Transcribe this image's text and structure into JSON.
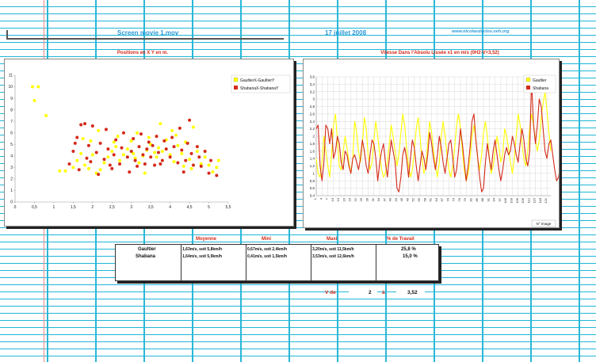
{
  "header": {
    "movie": "Screen movie 1.mov",
    "date": "17 juillet 2008",
    "site": "www.nicolasduclos.ovh.org"
  },
  "chart_data": [
    {
      "type": "scatter",
      "title": "Positions en X Y en m.",
      "xlim": [
        0,
        5.5
      ],
      "ylim": [
        0,
        11
      ],
      "xticks": [
        "0",
        "0,5",
        "1",
        "1,5",
        "2",
        "2,5",
        "3",
        "3,5",
        "4",
        "4,5",
        "5",
        "5,5"
      ],
      "yticks": [
        "0",
        "1",
        "2",
        "3",
        "4",
        "5",
        "6",
        "7",
        "8",
        "9",
        "10",
        "11"
      ],
      "legend": "top-right",
      "grid": false,
      "series": [
        {
          "name": "GaultierX-GaultierY",
          "color": "#ffff00",
          "points": [
            [
              0.45,
              10
            ],
            [
              0.6,
              10
            ],
            [
              0.5,
              8.8
            ],
            [
              0.8,
              7.5
            ],
            [
              1.15,
              2.7
            ],
            [
              1.3,
              2.7
            ],
            [
              1.5,
              3
            ],
            [
              1.6,
              3.6
            ],
            [
              1.7,
              4.2
            ],
            [
              1.75,
              5.5
            ],
            [
              1.8,
              3.2
            ],
            [
              1.9,
              2.9
            ],
            [
              2,
              4.1
            ],
            [
              2.1,
              2.5
            ],
            [
              2.2,
              2.8
            ],
            [
              2.3,
              3.4
            ],
            [
              2.4,
              3.9
            ],
            [
              2.5,
              4.4
            ],
            [
              2.55,
              5.2
            ],
            [
              2.6,
              4.8
            ],
            [
              2.7,
              3.6
            ],
            [
              2.8,
              4.1
            ],
            [
              2.9,
              4.6
            ],
            [
              3,
              5.3
            ],
            [
              3.05,
              4.2
            ],
            [
              3.1,
              3.8
            ],
            [
              3.2,
              3.4
            ],
            [
              3.3,
              4
            ],
            [
              3.35,
              2.5
            ],
            [
              3.4,
              4.5
            ],
            [
              3.5,
              5
            ],
            [
              3.6,
              4.3
            ],
            [
              3.65,
              3.9
            ],
            [
              3.7,
              4.7
            ],
            [
              3.75,
              6.8
            ],
            [
              3.8,
              4.4
            ],
            [
              3.9,
              5.4
            ],
            [
              4,
              4.1
            ],
            [
              4.1,
              3.5
            ],
            [
              4.15,
              5.8
            ],
            [
              4.2,
              4.9
            ],
            [
              4.3,
              4.2
            ],
            [
              4.35,
              3.1
            ],
            [
              4.4,
              5.2
            ],
            [
              4.5,
              3.7
            ],
            [
              4.55,
              2.9
            ],
            [
              4.6,
              6.5
            ],
            [
              4.7,
              4.4
            ],
            [
              4.8,
              3.3
            ],
            [
              4.9,
              3.9
            ],
            [
              5,
              3.2
            ],
            [
              5.1,
              2.6
            ],
            [
              5.2,
              3
            ],
            [
              5.25,
              3.6
            ],
            [
              1.95,
              5.3
            ],
            [
              2.15,
              6.2
            ],
            [
              2.65,
              5.7
            ],
            [
              3.15,
              6
            ],
            [
              3.45,
              5.6
            ],
            [
              4.05,
              6.2
            ]
          ]
        },
        {
          "name": "ShabanaX-ShabanaY",
          "color": "#d42a1a",
          "points": [
            [
              1.4,
              3.3
            ],
            [
              1.5,
              4.4
            ],
            [
              1.6,
              5.6
            ],
            [
              1.65,
              2.8
            ],
            [
              1.7,
              6.7
            ],
            [
              1.8,
              6.8
            ],
            [
              1.85,
              3.8
            ],
            [
              1.9,
              4.9
            ],
            [
              1.95,
              3.5
            ],
            [
              2,
              6.6
            ],
            [
              2.1,
              4.3
            ],
            [
              2.15,
              2.4
            ],
            [
              2.2,
              5.1
            ],
            [
              2.3,
              3.7
            ],
            [
              2.35,
              6.3
            ],
            [
              2.4,
              4.6
            ],
            [
              2.5,
              2.9
            ],
            [
              2.55,
              4.1
            ],
            [
              2.6,
              5.4
            ],
            [
              2.7,
              3.3
            ],
            [
              2.75,
              4.7
            ],
            [
              2.8,
              6
            ],
            [
              2.9,
              3.9
            ],
            [
              2.95,
              2.6
            ],
            [
              3,
              4.4
            ],
            [
              3.05,
              5.5
            ],
            [
              3.1,
              3.6
            ],
            [
              3.2,
              4.8
            ],
            [
              3.25,
              5.9
            ],
            [
              3.3,
              4.1
            ],
            [
              3.35,
              3.3
            ],
            [
              3.4,
              4.6
            ],
            [
              3.45,
              5.2
            ],
            [
              3.5,
              3.9
            ],
            [
              3.55,
              4.9
            ],
            [
              3.6,
              3.2
            ],
            [
              3.65,
              5.7
            ],
            [
              3.7,
              4.3
            ],
            [
              3.8,
              3.6
            ],
            [
              3.85,
              5.3
            ],
            [
              3.9,
              4.6
            ],
            [
              4,
              3.9
            ],
            [
              4.05,
              5.6
            ],
            [
              4.1,
              4.8
            ],
            [
              4.2,
              3.4
            ],
            [
              4.25,
              6.4
            ],
            [
              4.3,
              4.5
            ],
            [
              4.4,
              3.6
            ],
            [
              4.45,
              5.1
            ],
            [
              4.5,
              7.1
            ],
            [
              4.55,
              4.2
            ],
            [
              4.6,
              3.2
            ],
            [
              4.7,
              4.8
            ],
            [
              4.75,
              3.9
            ],
            [
              4.8,
              3.1
            ],
            [
              4.9,
              4.4
            ],
            [
              5,
              2.5
            ],
            [
              5.05,
              3.6
            ],
            [
              5.2,
              2.3
            ],
            [
              1.55,
              5.1
            ],
            [
              2.45,
              3.2
            ],
            [
              3.15,
              3.1
            ],
            [
              3.75,
              3.3
            ],
            [
              4.35,
              2.6
            ]
          ]
        }
      ]
    },
    {
      "type": "line",
      "title": "Vitesse Dans l'Absolu Lissée x1 en m/s (0H2-V=3,52)",
      "xlabel": "N° Image",
      "ylim": [
        0.4,
        3.6
      ],
      "yticks": [
        "0,4",
        "0,6",
        "0,8",
        "1",
        "1,2",
        "1,4",
        "1,6",
        "1,8",
        "2",
        "2,2",
        "2,4",
        "2,6",
        "2,8",
        "3",
        "3,2",
        "3,4",
        "3,6"
      ],
      "xticks": [
        "1",
        "4",
        "7",
        "10",
        "13",
        "16",
        "19",
        "22",
        "25",
        "28",
        "31",
        "34",
        "37",
        "40",
        "43",
        "46",
        "49",
        "52",
        "55",
        "58",
        "61",
        "64",
        "67",
        "70",
        "73",
        "76",
        "79",
        "82",
        "85",
        "88",
        "91",
        "94",
        "97",
        "100",
        "103",
        "106",
        "109",
        "112",
        "115",
        "118",
        "121",
        "124",
        "127",
        "130"
      ],
      "legend": "top-right",
      "grid": true,
      "series": [
        {
          "name": "Gaultier",
          "color": "#ffff00",
          "values": [
            1.4,
            1,
            0.9,
            1.3,
            2,
            1.6,
            1.2,
            0.9,
            1.5,
            2.3,
            2.6,
            1.9,
            1.2,
            1.1,
            1.6,
            2,
            1.7,
            1.3,
            1,
            1.4,
            2.4,
            2.1,
            1.6,
            1.3,
            1.8,
            2.5,
            2.2,
            1.5,
            1.1,
            1.3,
            1.9,
            2.4,
            2,
            1.5,
            1.1,
            0.9,
            1,
            1.3,
            1.8,
            2.3,
            2,
            1.6,
            1.2,
            1.5,
            2.1,
            2.6,
            2.3,
            1.7,
            1.2,
            0.9,
            1.1,
            1.6,
            2.2,
            2.5,
            2,
            1.4,
            1,
            1.2,
            1.8,
            2.4,
            2.1,
            1.6,
            1.2,
            0.9,
            1.3,
            2,
            2.4,
            2,
            1.5,
            1.1,
            0.9,
            1.2,
            1.7,
            2.3,
            2.6,
            2.2,
            1.6,
            1.1,
            0.8,
            1,
            1.4,
            2,
            2.3,
            1.9,
            1.4,
            1.1,
            1.5,
            2.1,
            2.4,
            2,
            1.4,
            1,
            1.2,
            1.6,
            2,
            1.7,
            1.3,
            1.5,
            2.2,
            2,
            1.7,
            1.3,
            1,
            1.4,
            2,
            2.6,
            2.3,
            1.8,
            1.4,
            1.2,
            1.6,
            2.2,
            2.6,
            2.3,
            1.9,
            1.6,
            1.9,
            2.5,
            2.9,
            3.2,
            2.7,
            2.1,
            1.6
          ]
        },
        {
          "name": "Shabana",
          "color": "#d42a1a",
          "values": [
            2.2,
            2.3,
            1.2,
            0.8,
            1.3,
            2.3,
            2.2,
            1.8,
            2.2,
            1.4,
            1.6,
            2,
            1.8,
            1.3,
            1.1,
            1.6,
            1.5,
            1.2,
            1,
            1.4,
            1.5,
            1.3,
            1.1,
            1.4,
            1.9,
            1.6,
            1.2,
            1,
            1.5,
            1.9,
            1.8,
            1.4,
            0.8,
            1.3,
            1.6,
            1.8,
            1.3,
            0.9,
            1.4,
            1.9,
            1.6,
            1.3,
            0.6,
            0.5,
            0.9,
            1.5,
            1.7,
            1.4,
            0.9,
            1.4,
            1.9,
            1.7,
            1.2,
            0.8,
            1.2,
            1.6,
            1.4,
            1.1,
            1.5,
            2.1,
            1.8,
            1.4,
            1.1,
            1.5,
            2,
            1.7,
            1.3,
            1,
            1.4,
            1.8,
            1.9,
            1.4,
            0.9,
            1.1,
            1.6,
            2.2,
            1.8,
            1.3,
            0.8,
            1.2,
            1.7,
            2.4,
            2.6,
            1.9,
            1.4,
            0.9,
            0.5,
            0.6,
            1.3,
            1.8,
            1.4,
            1.1,
            1.6,
            1.9,
            1.5,
            1.1,
            0.8,
            1.1,
            1.5,
            1.7,
            1.5,
            1.6,
            2,
            1.8,
            1.5,
            1.3,
            1.8,
            2.2,
            1.9,
            1.4,
            1.2,
            1.6,
            3.5,
            2.3,
            1.8,
            2.3,
            3,
            2.8,
            2.2,
            1.6,
            1.4,
            1.8,
            1.9,
            1.5,
            1.1,
            0.8,
            0.9,
            1.2
          ]
        }
      ]
    }
  ],
  "stats_table": {
    "headers": [
      "Moyenne",
      "Mini",
      "Maxi",
      "% de Travail"
    ],
    "rows": [
      {
        "name": "Gaultier",
        "moyenne": "1,63m/s, soit 5,8km/h",
        "mini": "0,67m/s, soit 2,4km/h",
        "maxi": "3,20m/s, soit 11,5km/h",
        "travail": "25,8 %"
      },
      {
        "name": "Shabana",
        "moyenne": "1,64m/s, soit 5,9km/h",
        "mini": "0,41m/s, soit 1,5km/h",
        "maxi": "3,53m/s, soit 12,6km/h",
        "travail": "15,0 %"
      }
    ]
  },
  "v_range": {
    "label_from": "V de",
    "from": "2",
    "label_to": "à",
    "to": "3,52"
  }
}
